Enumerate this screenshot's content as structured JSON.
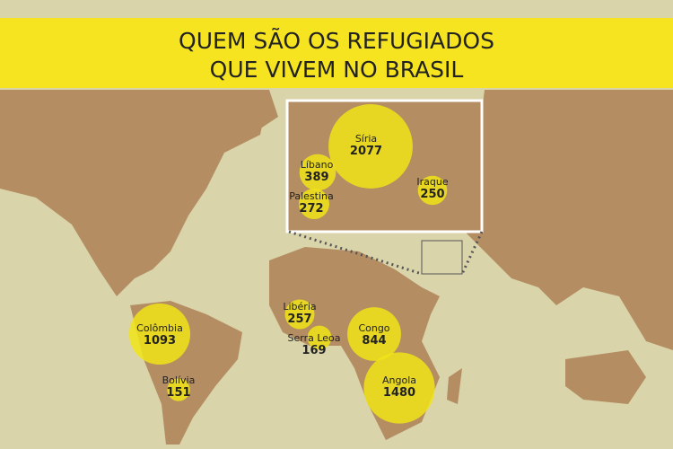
{
  "title": [
    "QUEM SÃO OS REFUGIADOS",
    "QUE VIVEM NO BRASIL"
  ],
  "bubbles": [
    {
      "name": "Síria",
      "value": 2077
    },
    {
      "name": "Líbano",
      "value": 389
    },
    {
      "name": "Palestina",
      "value": 272
    },
    {
      "name": "Iraque",
      "value": 250
    },
    {
      "name": "Libéria",
      "value": 257
    },
    {
      "name": "Serra Leoa",
      "value": 169
    },
    {
      "name": "Colômbia",
      "value": 1093
    },
    {
      "name": "Bolívia",
      "value": 151
    },
    {
      "name": "Congo",
      "value": 844
    },
    {
      "name": "Angola",
      "value": 1480
    }
  ]
}
